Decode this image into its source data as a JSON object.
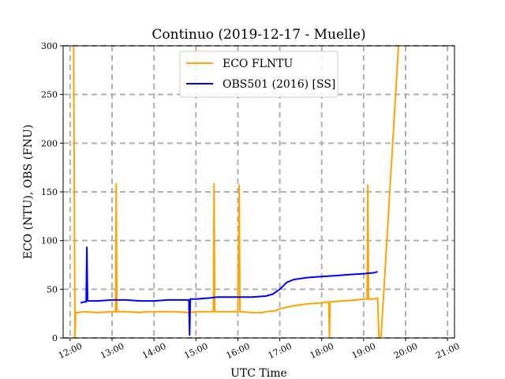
{
  "chart_data": {
    "type": "line",
    "title": "Continuo (2019-12-17 - Muelle)",
    "xlabel": "UTC Time",
    "ylabel": "ECO (NTU), OBS (FNU)",
    "xlim": [
      "11:50",
      "21:10"
    ],
    "ylim": [
      0,
      300
    ],
    "xticks": [
      "12:00",
      "13:00",
      "14:00",
      "15:00",
      "16:00",
      "17:00",
      "18:00",
      "19:00",
      "20:00",
      "21:00"
    ],
    "yticks": [
      0,
      50,
      100,
      150,
      200,
      250,
      300
    ],
    "grid": true,
    "legend_position": "top-center",
    "series": [
      {
        "name": "ECO FLNTU",
        "color": "#ffa500",
        "x": [
          "12:05",
          "12:07",
          "12:08",
          "12:09",
          "12:12",
          "12:20",
          "12:40",
          "13:00",
          "13:05",
          "13:06",
          "13:07",
          "13:20",
          "13:40",
          "13:50",
          "14:00",
          "14:20",
          "14:30",
          "14:50",
          "15:00",
          "15:20",
          "15:25",
          "15:26",
          "15:27",
          "15:40",
          "16:00",
          "16:02",
          "16:03",
          "16:04",
          "16:20",
          "16:35",
          "16:40",
          "16:55",
          "17:00",
          "17:20",
          "17:40",
          "18:00",
          "18:10",
          "18:11",
          "18:12",
          "18:30",
          "18:50",
          "19:00",
          "19:05",
          "19:06",
          "19:07",
          "19:15",
          "19:20",
          "19:22",
          "19:25",
          "19:50"
        ],
        "y": [
          300,
          0,
          25,
          26,
          26,
          27,
          26,
          27,
          27,
          158,
          27,
          27,
          26,
          27,
          27,
          27,
          27,
          26,
          27,
          27,
          27,
          158,
          27,
          27,
          27,
          157,
          27,
          27,
          26,
          26,
          27,
          28,
          30,
          33,
          35,
          36,
          37,
          0,
          37,
          38,
          39,
          40,
          40,
          157,
          40,
          40,
          41,
          0,
          2,
          300
        ]
      },
      {
        "name": "OBS501 (2016) [SS]",
        "color": "#0000ff",
        "x": [
          "12:15",
          "12:20",
          "12:23",
          "12:24",
          "12:25",
          "12:40",
          "13:00",
          "13:20",
          "13:40",
          "14:00",
          "14:20",
          "14:40",
          "14:50",
          "14:51",
          "14:52",
          "15:00",
          "15:20",
          "15:30",
          "15:40",
          "16:00",
          "16:20",
          "16:40",
          "16:50",
          "17:00",
          "17:10",
          "17:20",
          "17:40",
          "18:00",
          "18:20",
          "18:40",
          "19:00",
          "19:15",
          "19:20"
        ],
        "y": [
          36,
          37,
          37,
          93,
          38,
          38,
          39,
          39,
          38,
          38,
          39,
          39,
          39,
          3,
          40,
          40,
          41,
          42,
          42,
          42,
          42,
          43,
          45,
          50,
          57,
          60,
          62,
          63,
          64,
          65,
          66,
          67,
          68
        ]
      }
    ]
  }
}
